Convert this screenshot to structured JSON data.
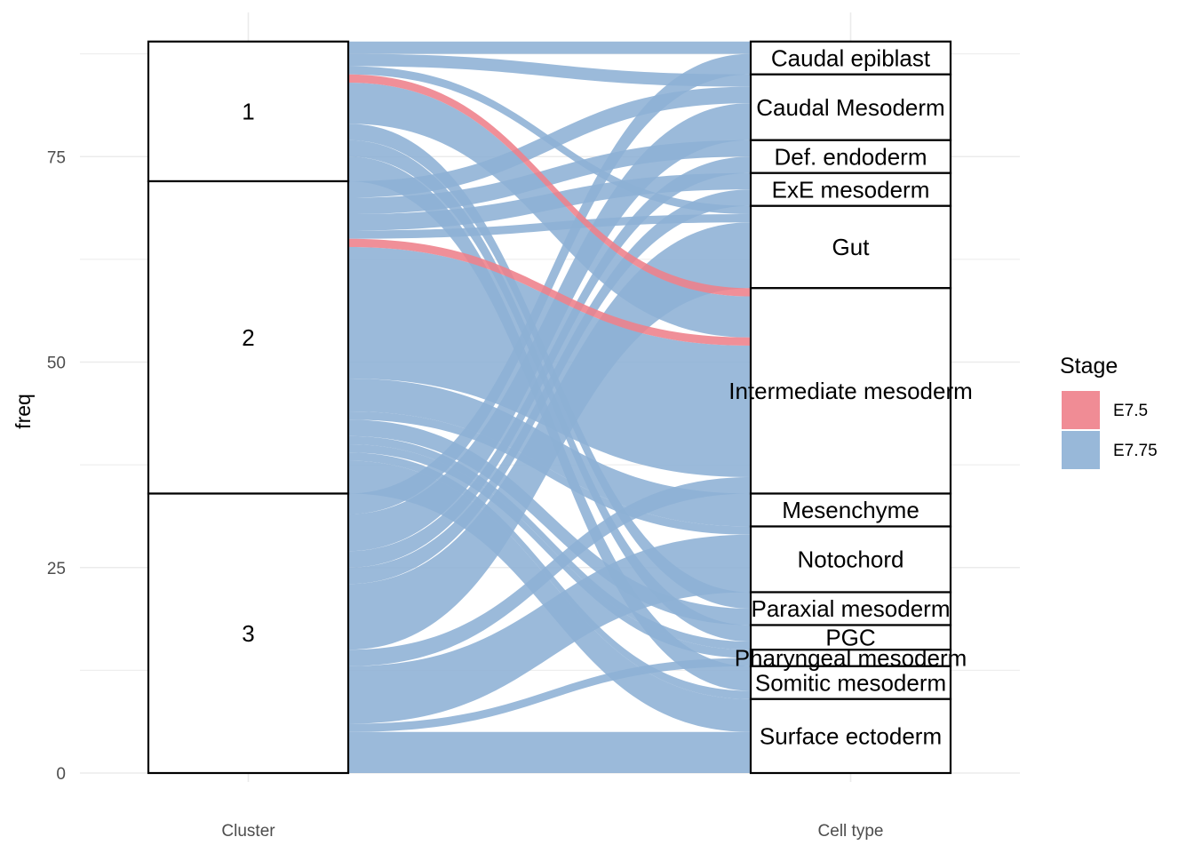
{
  "chart_data": {
    "type": "alluvial",
    "ylabel": "freq",
    "axes": [
      "Cluster",
      "Cell type"
    ],
    "ylim": [
      0,
      92
    ],
    "yticks": [
      0,
      25,
      50,
      75
    ],
    "grid": true,
    "legend": {
      "title": "Stage",
      "position": "right",
      "entries": [
        {
          "name": "E7.5",
          "color": "#ee7f8a"
        },
        {
          "name": "E7.75",
          "color": "#8db0d5"
        }
      ]
    },
    "stratum_label_color": "#000000",
    "cluster_strata": [
      "1",
      "2",
      "3"
    ],
    "cell_type_strata": [
      "Caudal epiblast",
      "Caudal Mesoderm",
      "Def. endoderm",
      "ExE mesoderm",
      "Gut",
      "Intermediate mesoderm",
      "Mesenchyme",
      "Notochord",
      "Paraxial mesoderm",
      "PGC",
      "Pharyngeal mesoderm",
      "Somitic mesoderm",
      "Surface ectoderm"
    ],
    "flows": [
      {
        "cluster": "1",
        "cell_type": "Caudal epiblast",
        "stage": "E7.75",
        "freq": 1.5
      },
      {
        "cluster": "1",
        "cell_type": "Caudal Mesoderm",
        "stage": "E7.75",
        "freq": 1.5
      },
      {
        "cluster": "1",
        "cell_type": "Gut",
        "stage": "E7.75",
        "freq": 1
      },
      {
        "cluster": "1",
        "cell_type": "Intermediate mesoderm",
        "stage": "E7.5",
        "freq": 1
      },
      {
        "cluster": "1",
        "cell_type": "Intermediate mesoderm",
        "stage": "E7.75",
        "freq": 5
      },
      {
        "cluster": "1",
        "cell_type": "Paraxial mesoderm",
        "stage": "E7.75",
        "freq": 2
      },
      {
        "cluster": "1",
        "cell_type": "PGC",
        "stage": "E7.75",
        "freq": 2
      },
      {
        "cluster": "1",
        "cell_type": "Somitic mesoderm",
        "stage": "E7.75",
        "freq": 3
      },
      {
        "cluster": "2",
        "cell_type": "Caudal Mesoderm",
        "stage": "E7.75",
        "freq": 2
      },
      {
        "cluster": "2",
        "cell_type": "Def. endoderm",
        "stage": "E7.75",
        "freq": 2
      },
      {
        "cluster": "2",
        "cell_type": "ExE mesoderm",
        "stage": "E7.75",
        "freq": 2
      },
      {
        "cluster": "2",
        "cell_type": "Gut",
        "stage": "E7.75",
        "freq": 1
      },
      {
        "cluster": "2",
        "cell_type": "Intermediate mesoderm",
        "stage": "E7.5",
        "freq": 1
      },
      {
        "cluster": "2",
        "cell_type": "Intermediate mesoderm",
        "stage": "E7.75",
        "freq": 16
      },
      {
        "cluster": "2",
        "cell_type": "Mesenchyme",
        "stage": "E7.75",
        "freq": 4
      },
      {
        "cluster": "2",
        "cell_type": "Notochord",
        "stage": "E7.75",
        "freq": 1
      },
      {
        "cluster": "2",
        "cell_type": "Paraxial mesoderm",
        "stage": "E7.75",
        "freq": 2
      },
      {
        "cluster": "2",
        "cell_type": "PGC",
        "stage": "E7.75",
        "freq": 1
      },
      {
        "cluster": "2",
        "cell_type": "Pharyngeal mesoderm",
        "stage": "E7.75",
        "freq": 1
      },
      {
        "cluster": "2",
        "cell_type": "Somitic mesoderm",
        "stage": "E7.75",
        "freq": 1
      },
      {
        "cluster": "2",
        "cell_type": "Surface ectoderm",
        "stage": "E7.75",
        "freq": 4
      },
      {
        "cluster": "3",
        "cell_type": "Caudal epiblast",
        "stage": "E7.75",
        "freq": 2.5
      },
      {
        "cluster": "3",
        "cell_type": "Caudal Mesoderm",
        "stage": "E7.75",
        "freq": 4.5
      },
      {
        "cluster": "3",
        "cell_type": "Def. endoderm",
        "stage": "E7.75",
        "freq": 2
      },
      {
        "cluster": "3",
        "cell_type": "ExE mesoderm",
        "stage": "E7.75",
        "freq": 2
      },
      {
        "cluster": "3",
        "cell_type": "Gut",
        "stage": "E7.75",
        "freq": 8
      },
      {
        "cluster": "3",
        "cell_type": "Intermediate mesoderm",
        "stage": "E7.75",
        "freq": 2
      },
      {
        "cluster": "3",
        "cell_type": "Notochord",
        "stage": "E7.75",
        "freq": 7
      },
      {
        "cluster": "3",
        "cell_type": "Pharyngeal mesoderm",
        "stage": "E7.75",
        "freq": 1
      },
      {
        "cluster": "3",
        "cell_type": "Surface ectoderm",
        "stage": "E7.75",
        "freq": 5
      }
    ]
  }
}
